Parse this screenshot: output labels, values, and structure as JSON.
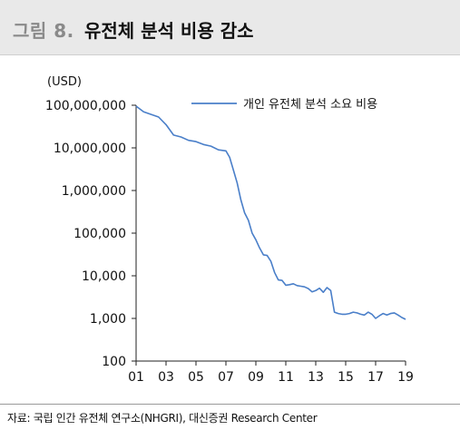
{
  "header": {
    "figure_label": "그림 8.",
    "title": "유전체 분석 비용 감소"
  },
  "source_note": "자료: 국립 인간 유전체 연구소(NHGRI), 대신증권 Research Center",
  "chart_data": {
    "type": "line",
    "unit_label": "(USD)",
    "y_scale": "log",
    "ylim": [
      100,
      100000000
    ],
    "y_ticks": [
      100,
      1000,
      10000,
      100000,
      1000000,
      10000000,
      100000000
    ],
    "y_tick_labels": [
      "100",
      "1,000",
      "10,000",
      "100,000",
      "1,000,000",
      "10,000,000",
      "100,000,000"
    ],
    "xlim": [
      2001,
      2019
    ],
    "x_ticks": [
      2001,
      2003,
      2005,
      2007,
      2009,
      2011,
      2013,
      2015,
      2017,
      2019
    ],
    "x_tick_labels": [
      "01",
      "03",
      "05",
      "07",
      "09",
      "11",
      "13",
      "15",
      "17",
      "19"
    ],
    "legend_position": "top-right",
    "grid": false,
    "series": [
      {
        "name": "개인 유전체 분석 소요 비용",
        "color": "#4a7fc9",
        "x": [
          2001.0,
          2001.5,
          2002.0,
          2002.5,
          2003.0,
          2003.5,
          2004.0,
          2004.5,
          2005.0,
          2005.5,
          2006.0,
          2006.5,
          2007.0,
          2007.25,
          2007.5,
          2007.75,
          2008.0,
          2008.25,
          2008.5,
          2008.75,
          2009.0,
          2009.25,
          2009.5,
          2009.75,
          2010.0,
          2010.25,
          2010.5,
          2010.75,
          2011.0,
          2011.25,
          2011.5,
          2011.75,
          2012.0,
          2012.25,
          2012.5,
          2012.75,
          2013.0,
          2013.25,
          2013.5,
          2013.75,
          2014.0,
          2014.25,
          2014.5,
          2014.75,
          2015.0,
          2015.25,
          2015.5,
          2015.75,
          2016.0,
          2016.25,
          2016.5,
          2016.75,
          2017.0,
          2017.25,
          2017.5,
          2017.75,
          2018.0,
          2018.25,
          2018.5,
          2018.75,
          2019.0
        ],
        "values": [
          95000000,
          70000000,
          61000000,
          53000000,
          35000000,
          20000000,
          18000000,
          15000000,
          14000000,
          12000000,
          11000000,
          9000000,
          8500000,
          6000000,
          3000000,
          1500000,
          600000,
          300000,
          200000,
          100000,
          70000,
          45000,
          31000,
          30000,
          22000,
          12000,
          8000,
          7800,
          6000,
          6200,
          6500,
          5900,
          5700,
          5500,
          5000,
          4200,
          4500,
          5100,
          4100,
          5300,
          4500,
          1400,
          1300,
          1250,
          1250,
          1300,
          1400,
          1350,
          1250,
          1200,
          1400,
          1250,
          1000,
          1150,
          1300,
          1200,
          1300,
          1350,
          1200,
          1050,
          950
        ]
      }
    ]
  }
}
